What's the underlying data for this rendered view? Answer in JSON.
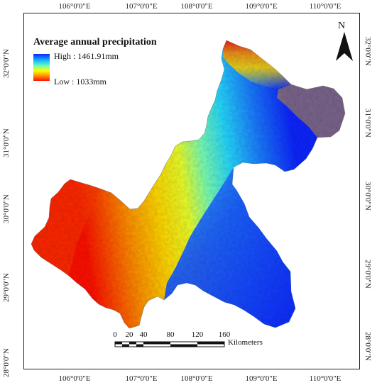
{
  "map": {
    "title": "Average annual precipitation",
    "legend": {
      "high_label": "High : 1461.91mm",
      "low_label": "Low : 1033mm",
      "colors": [
        "#0d25ff",
        "#14b8ff",
        "#73ffb0",
        "#ffff00",
        "#ff8c00",
        "#ff1000"
      ]
    },
    "north_arrow_label": "N",
    "longitude_labels": [
      "106°0'0\"E",
      "107°0'0\"E",
      "108°0'0\"E",
      "109°0'0\"E",
      "110°0'0\"E"
    ],
    "latitude_labels": [
      "32°0'0\"N",
      "31°0'0\"N",
      "30°0'0\"N",
      "29°0'0\"N",
      "28°0'0\"N"
    ],
    "scale_bar": {
      "ticks": [
        "0",
        "20",
        "40",
        "80",
        "120",
        "160"
      ],
      "unit": "Kilometers"
    }
  }
}
